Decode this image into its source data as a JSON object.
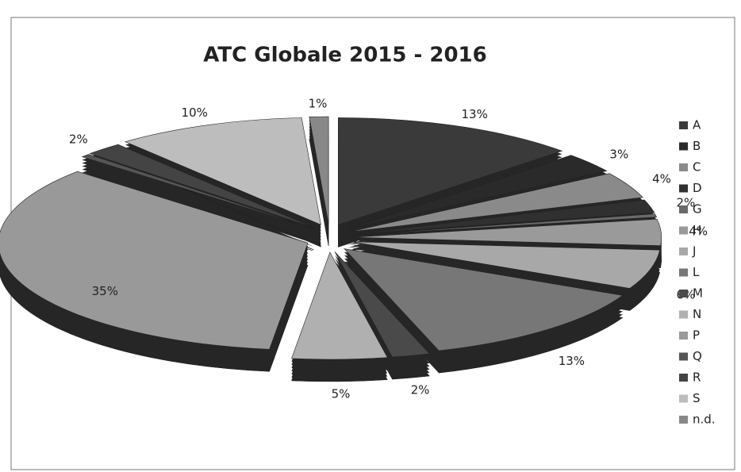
{
  "chart_data": {
    "type": "pie",
    "title": "ATC Globale 2015 - 2016",
    "categories": [
      "A",
      "B",
      "C",
      "D",
      "G",
      "H",
      "J",
      "L",
      "M",
      "N",
      "P",
      "Q",
      "R",
      "S",
      "n.d."
    ],
    "values": [
      13,
      3,
      4,
      2,
      0.5,
      4,
      6,
      13,
      2,
      5,
      35,
      0.5,
      2,
      10,
      1
    ],
    "value_labels": [
      "13%",
      "3%",
      "4%",
      "2%",
      null,
      "4%",
      "6%",
      "13%",
      "2%",
      "5%",
      "35%",
      null,
      "2%",
      "10%",
      "1%"
    ],
    "colors": [
      "#3a3a3a",
      "#2a2a2a",
      "#8a8a8a",
      "#303030",
      "#6a6a6a",
      "#9a9a9a",
      "#a8a8a8",
      "#777777",
      "#4a4a4a",
      "#b0b0b0",
      "#999999",
      "#555555",
      "#444444",
      "#bdbdbd",
      "#888888"
    ]
  }
}
